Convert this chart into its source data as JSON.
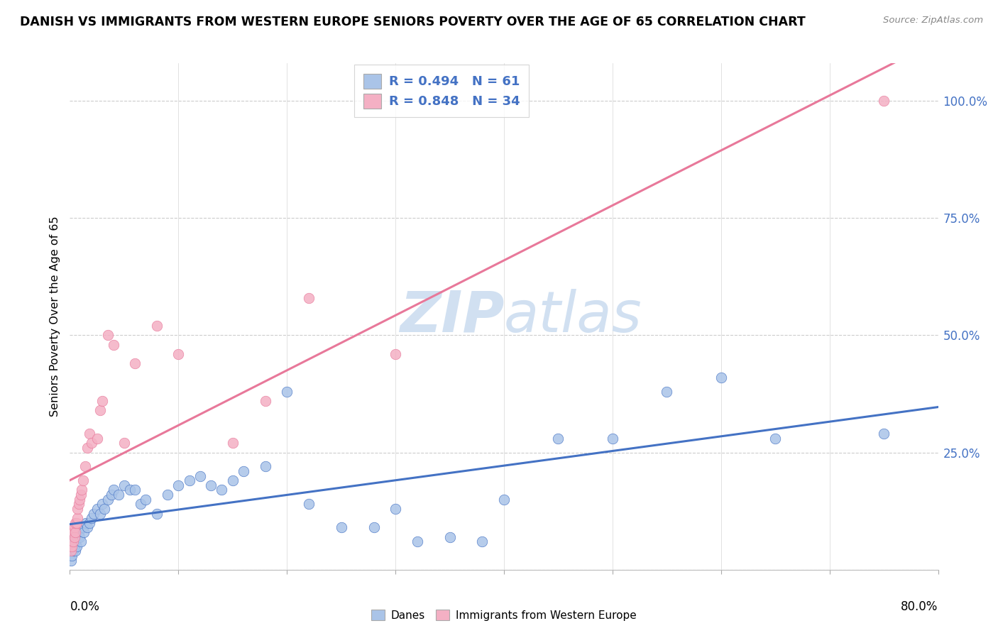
{
  "title": "DANISH VS IMMIGRANTS FROM WESTERN EUROPE SENIORS POVERTY OVER THE AGE OF 65 CORRELATION CHART",
  "source": "Source: ZipAtlas.com",
  "ylabel": "Seniors Poverty Over the Age of 65",
  "danes_R": 0.494,
  "danes_N": 61,
  "immigrants_R": 0.848,
  "immigrants_N": 34,
  "danes_color": "#aac4e8",
  "danes_line_color": "#4472c4",
  "immigrants_color": "#f4b0c4",
  "immigrants_line_color": "#e8789a",
  "background_color": "#ffffff",
  "grid_color": "#dddddd",
  "grid_dash_color": "#cccccc",
  "right_tick_color": "#4472c4",
  "watermark_color": "#ccddf0",
  "xlim": [
    0.0,
    0.8
  ],
  "ylim_max": 1.08,
  "danes_x": [
    0.001,
    0.002,
    0.002,
    0.003,
    0.003,
    0.004,
    0.004,
    0.005,
    0.005,
    0.006,
    0.006,
    0.007,
    0.008,
    0.009,
    0.01,
    0.011,
    0.012,
    0.013,
    0.015,
    0.016,
    0.018,
    0.02,
    0.022,
    0.025,
    0.028,
    0.03,
    0.032,
    0.035,
    0.038,
    0.04,
    0.045,
    0.05,
    0.055,
    0.06,
    0.065,
    0.07,
    0.08,
    0.09,
    0.1,
    0.11,
    0.12,
    0.13,
    0.14,
    0.15,
    0.16,
    0.18,
    0.2,
    0.22,
    0.25,
    0.28,
    0.3,
    0.32,
    0.35,
    0.38,
    0.4,
    0.45,
    0.5,
    0.55,
    0.6,
    0.65,
    0.75
  ],
  "danes_y": [
    0.02,
    0.03,
    0.05,
    0.04,
    0.06,
    0.05,
    0.07,
    0.04,
    0.06,
    0.05,
    0.08,
    0.07,
    0.08,
    0.07,
    0.06,
    0.09,
    0.09,
    0.08,
    0.1,
    0.09,
    0.1,
    0.11,
    0.12,
    0.13,
    0.12,
    0.14,
    0.13,
    0.15,
    0.16,
    0.17,
    0.16,
    0.18,
    0.17,
    0.17,
    0.14,
    0.15,
    0.12,
    0.16,
    0.18,
    0.19,
    0.2,
    0.18,
    0.17,
    0.19,
    0.21,
    0.22,
    0.38,
    0.14,
    0.09,
    0.09,
    0.13,
    0.06,
    0.07,
    0.06,
    0.15,
    0.28,
    0.28,
    0.38,
    0.41,
    0.28,
    0.29
  ],
  "immigrants_x": [
    0.001,
    0.002,
    0.003,
    0.003,
    0.004,
    0.004,
    0.005,
    0.005,
    0.006,
    0.007,
    0.007,
    0.008,
    0.009,
    0.01,
    0.011,
    0.012,
    0.014,
    0.016,
    0.018,
    0.02,
    0.025,
    0.028,
    0.03,
    0.035,
    0.04,
    0.05,
    0.06,
    0.08,
    0.1,
    0.15,
    0.18,
    0.22,
    0.3,
    0.75
  ],
  "immigrants_y": [
    0.04,
    0.05,
    0.06,
    0.08,
    0.07,
    0.09,
    0.08,
    0.1,
    0.1,
    0.11,
    0.13,
    0.14,
    0.15,
    0.16,
    0.17,
    0.19,
    0.22,
    0.26,
    0.29,
    0.27,
    0.28,
    0.34,
    0.36,
    0.5,
    0.48,
    0.27,
    0.44,
    0.52,
    0.46,
    0.27,
    0.36,
    0.58,
    0.46,
    1.0
  ],
  "x_tick_positions": [
    0.0,
    0.1,
    0.2,
    0.3,
    0.4,
    0.5,
    0.6,
    0.7,
    0.8
  ],
  "y_tick_positions": [
    0.0,
    0.25,
    0.5,
    0.75,
    1.0
  ],
  "y_tick_labels": [
    "",
    "25.0%",
    "50.0%",
    "75.0%",
    "100.0%"
  ]
}
